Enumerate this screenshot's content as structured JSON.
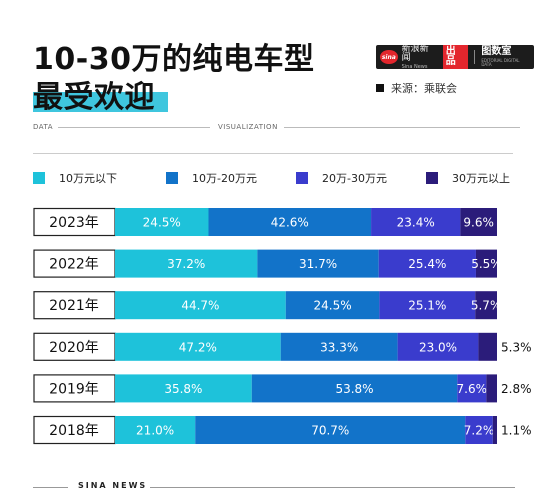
{
  "header": {
    "title_line1": "10-30万的纯电车型",
    "title_line2": "最受欢迎",
    "brand_cn": "新浪新闻",
    "brand_en": "Sina News",
    "brand_logo": "sina",
    "produced": "出品",
    "brand2_cn": "图数室",
    "brand2_en": "EDITORIAL DIGITAL DATA",
    "source": "来源：乘联会",
    "data_label": "DATA",
    "vis_label": "VISUALIZATION"
  },
  "footer": {
    "label": "SINA NEWS"
  },
  "colors": {
    "accent": "#3fc6de",
    "s1": "#1ec2da",
    "s2": "#1273c9",
    "s3": "#3a3ccd",
    "s4": "#2b1c7a"
  },
  "chart_data": {
    "type": "bar",
    "orientation": "horizontal",
    "stacked": true,
    "percent": true,
    "legend_position": "top",
    "grid": false,
    "categories": [
      "2023年",
      "2022年",
      "2021年",
      "2020年",
      "2019年",
      "2018年"
    ],
    "series": [
      {
        "name": "10万元以下",
        "values": [
          24.5,
          37.2,
          44.7,
          47.2,
          35.8,
          21.0
        ]
      },
      {
        "name": "10万-20万元",
        "values": [
          42.6,
          31.7,
          24.5,
          33.3,
          53.8,
          70.7
        ]
      },
      {
        "name": "20万-30万元",
        "values": [
          23.4,
          25.4,
          25.1,
          23.0,
          7.6,
          7.2
        ]
      },
      {
        "name": "30万元以上",
        "values": [
          9.6,
          5.5,
          5.7,
          5.3,
          2.8,
          1.1
        ]
      }
    ],
    "value_labels": [
      [
        "24.5%",
        "42.6%",
        "23.4%",
        "9.6%"
      ],
      [
        "37.2%",
        "31.7%",
        "25.4%",
        "5.5%"
      ],
      [
        "44.7%",
        "24.5%",
        "25.1%",
        "5.7%"
      ],
      [
        "47.2%",
        "33.3%",
        "23.0%",
        "5.3%"
      ],
      [
        "35.8%",
        "53.8%",
        "7.6%",
        "2.8%"
      ],
      [
        "21.0%",
        "70.7%",
        "7.2%",
        "1.1%"
      ]
    ]
  }
}
